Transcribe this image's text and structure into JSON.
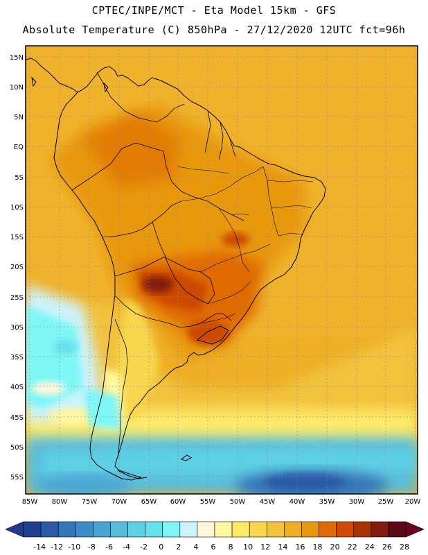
{
  "header": {
    "line1": "CPTEC/INPE/MCT -  Eta Model 15km - GFS",
    "line2": "Absolute Temperature (C) 850hPa - 27/12/2020 12UTC fct=96h"
  },
  "map": {
    "lat_ticks": [
      "15N",
      "10N",
      "5N",
      "EQ",
      "5S",
      "10S",
      "15S",
      "20S",
      "25S",
      "30S",
      "35S",
      "40S",
      "45S",
      "50S",
      "55S"
    ],
    "lon_ticks": [
      "85W",
      "80W",
      "75W",
      "70W",
      "65W",
      "60W",
      "55W",
      "50W",
      "45W",
      "40W",
      "35W",
      "30W",
      "25W",
      "20W"
    ]
  },
  "colorbar": {
    "labels": [
      "-14",
      "-12",
      "-10",
      "-8",
      "-6",
      "-4",
      "-2",
      "0",
      "2",
      "4",
      "6",
      "8",
      "10",
      "12",
      "14",
      "16",
      "18",
      "20",
      "22",
      "24",
      "26",
      "28"
    ],
    "colors": [
      "#1f3f8f",
      "#2c5aa8",
      "#3474b8",
      "#3c8cc8",
      "#48a4d4",
      "#58bcdc",
      "#5ed0e4",
      "#68e0ec",
      "#7ff6f6",
      "#cdf3fb",
      "#fff7dc",
      "#fff8a0",
      "#fdea6a",
      "#f8d64e",
      "#f2c23c",
      "#eeae26",
      "#e89810",
      "#e06a06",
      "#cc4a04",
      "#a83404",
      "#801c10",
      "#5c0a18"
    ],
    "under_color": "#233a8c",
    "over_color": "#6a0024"
  }
}
